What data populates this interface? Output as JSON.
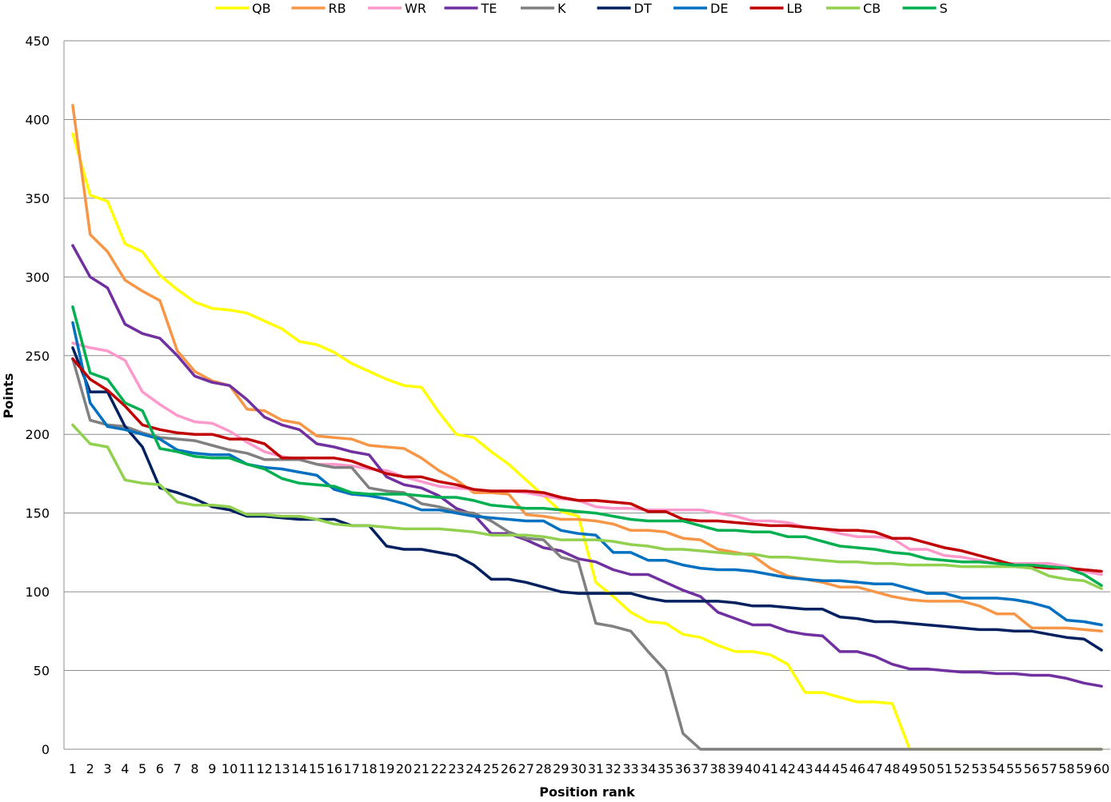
{
  "chart_data": {
    "type": "line",
    "title": "",
    "xlabel": "Position rank",
    "ylabel": "Points",
    "ylim": [
      0,
      450
    ],
    "yticks": [
      0,
      50,
      100,
      150,
      200,
      250,
      300,
      350,
      400,
      450
    ],
    "grid": "horizontal",
    "legend_position": "top",
    "x": [
      1,
      2,
      3,
      4,
      5,
      6,
      7,
      8,
      9,
      10,
      11,
      12,
      13,
      14,
      15,
      16,
      17,
      18,
      19,
      20,
      21,
      22,
      23,
      24,
      25,
      26,
      27,
      28,
      29,
      30,
      31,
      32,
      33,
      34,
      35,
      36,
      37,
      38,
      39,
      40,
      41,
      42,
      43,
      44,
      45,
      46,
      47,
      48,
      49,
      50,
      51,
      52,
      53,
      54,
      55,
      56,
      57,
      58,
      59,
      60
    ],
    "series": [
      {
        "name": "QB",
        "color": "#FFFF00",
        "values": [
          391,
          352,
          348,
          321,
          316,
          301,
          292,
          284,
          280,
          279,
          277,
          272,
          267,
          259,
          257,
          252,
          245,
          240,
          235,
          231,
          230,
          214,
          200,
          198,
          189,
          181,
          171,
          161,
          151,
          148,
          106,
          97,
          87,
          81,
          80,
          73,
          71,
          66,
          62,
          62,
          60,
          54,
          36,
          36,
          33,
          30,
          30,
          29,
          0,
          0,
          0,
          0,
          0,
          0,
          0,
          0,
          0,
          0,
          0,
          0
        ]
      },
      {
        "name": "RB",
        "color": "#F79646",
        "values": [
          409,
          327,
          316,
          298,
          291,
          285,
          253,
          240,
          234,
          231,
          216,
          215,
          209,
          207,
          199,
          198,
          197,
          193,
          192,
          191,
          185,
          177,
          171,
          163,
          163,
          162,
          149,
          148,
          146,
          146,
          145,
          143,
          139,
          139,
          138,
          134,
          133,
          127,
          125,
          123,
          115,
          110,
          108,
          106,
          103,
          103,
          100,
          97,
          95,
          94,
          94,
          94,
          91,
          86,
          86,
          77,
          77,
          77,
          76,
          75
        ]
      },
      {
        "name": "WR",
        "color": "#FF99CC",
        "values": [
          258,
          255,
          253,
          247,
          227,
          219,
          212,
          208,
          207,
          202,
          195,
          189,
          186,
          184,
          181,
          181,
          180,
          178,
          177,
          173,
          170,
          167,
          166,
          165,
          164,
          164,
          163,
          161,
          159,
          158,
          154,
          153,
          153,
          152,
          152,
          152,
          152,
          150,
          148,
          145,
          145,
          144,
          141,
          140,
          137,
          135,
          135,
          134,
          127,
          127,
          123,
          122,
          120,
          118,
          118,
          118,
          118,
          116,
          113,
          111
        ]
      },
      {
        "name": "TE",
        "color": "#7030A0",
        "values": [
          320,
          300,
          293,
          270,
          264,
          261,
          250,
          237,
          233,
          231,
          222,
          211,
          206,
          203,
          194,
          192,
          189,
          187,
          173,
          168,
          166,
          161,
          153,
          149,
          137,
          137,
          133,
          128,
          126,
          121,
          119,
          114,
          111,
          111,
          106,
          101,
          97,
          87,
          83,
          79,
          79,
          75,
          73,
          72,
          62,
          62,
          59,
          54,
          51,
          51,
          50,
          49,
          49,
          48,
          48,
          47,
          47,
          45,
          42,
          40
        ]
      },
      {
        "name": "K",
        "color": "#808080",
        "values": [
          248,
          209,
          206,
          205,
          201,
          198,
          197,
          196,
          193,
          190,
          188,
          184,
          184,
          184,
          181,
          179,
          179,
          166,
          164,
          163,
          156,
          154,
          151,
          150,
          145,
          138,
          134,
          133,
          122,
          119,
          80,
          78,
          75,
          62,
          50,
          10,
          0,
          0,
          0,
          0,
          0,
          0,
          0,
          0,
          0,
          0,
          0,
          0,
          0,
          0,
          0,
          0,
          0,
          0,
          0,
          0,
          0,
          0,
          0,
          0
        ]
      },
      {
        "name": "DT",
        "color": "#002060",
        "values": [
          255,
          227,
          227,
          205,
          192,
          166,
          163,
          159,
          154,
          152,
          148,
          148,
          147,
          146,
          146,
          146,
          142,
          142,
          129,
          127,
          127,
          125,
          123,
          117,
          108,
          108,
          106,
          103,
          100,
          99,
          99,
          99,
          99,
          96,
          94,
          94,
          94,
          94,
          93,
          91,
          91,
          90,
          89,
          89,
          84,
          83,
          81,
          81,
          80,
          79,
          78,
          77,
          76,
          76,
          75,
          75,
          73,
          71,
          70,
          63
        ]
      },
      {
        "name": "DE",
        "color": "#0070C0",
        "values": [
          271,
          220,
          205,
          203,
          200,
          197,
          190,
          188,
          187,
          187,
          181,
          179,
          178,
          176,
          174,
          165,
          162,
          161,
          159,
          156,
          152,
          152,
          150,
          148,
          147,
          146,
          145,
          145,
          139,
          137,
          136,
          125,
          125,
          120,
          120,
          117,
          115,
          114,
          114,
          113,
          111,
          109,
          108,
          107,
          107,
          106,
          105,
          105,
          102,
          99,
          99,
          96,
          96,
          96,
          95,
          93,
          90,
          82,
          81,
          79
        ]
      },
      {
        "name": "LB",
        "color": "#C00000",
        "values": [
          248,
          235,
          228,
          218,
          206,
          203,
          201,
          200,
          200,
          197,
          197,
          194,
          185,
          185,
          185,
          185,
          183,
          179,
          175,
          173,
          173,
          170,
          168,
          165,
          164,
          164,
          164,
          163,
          160,
          158,
          158,
          157,
          156,
          151,
          151,
          146,
          145,
          145,
          144,
          143,
          142,
          142,
          141,
          140,
          139,
          139,
          138,
          134,
          134,
          131,
          128,
          126,
          123,
          120,
          117,
          116,
          115,
          115,
          114,
          113
        ]
      },
      {
        "name": "CB",
        "color": "#92D050",
        "values": [
          206,
          194,
          192,
          171,
          169,
          168,
          157,
          155,
          155,
          154,
          149,
          149,
          148,
          148,
          146,
          143,
          142,
          142,
          141,
          140,
          140,
          140,
          139,
          138,
          136,
          136,
          136,
          135,
          133,
          133,
          133,
          132,
          130,
          129,
          127,
          127,
          126,
          125,
          124,
          124,
          122,
          122,
          121,
          120,
          119,
          119,
          118,
          118,
          117,
          117,
          117,
          116,
          116,
          116,
          116,
          115,
          110,
          108,
          107,
          102
        ]
      },
      {
        "name": "S",
        "color": "#00B050",
        "values": [
          281,
          239,
          235,
          220,
          215,
          191,
          189,
          186,
          185,
          185,
          181,
          178,
          172,
          169,
          168,
          167,
          163,
          162,
          162,
          162,
          161,
          160,
          160,
          158,
          155,
          154,
          153,
          153,
          152,
          151,
          150,
          148,
          146,
          145,
          145,
          145,
          142,
          139,
          139,
          138,
          138,
          135,
          135,
          132,
          129,
          128,
          127,
          125,
          124,
          121,
          120,
          119,
          119,
          118,
          117,
          117,
          116,
          115,
          111,
          104
        ]
      }
    ]
  }
}
